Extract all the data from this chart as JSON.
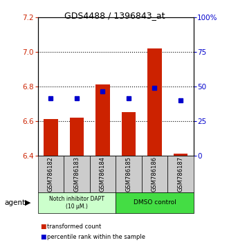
{
  "title": "GDS4488 / 1396843_at",
  "samples": [
    "GSM786182",
    "GSM786183",
    "GSM786184",
    "GSM786185",
    "GSM786186",
    "GSM786187"
  ],
  "bar_bottoms": [
    6.4,
    6.4,
    6.4,
    6.4,
    6.4,
    6.4
  ],
  "bar_tops": [
    6.61,
    6.62,
    6.81,
    6.65,
    7.02,
    6.41
  ],
  "percentile_values": [
    6.73,
    6.73,
    6.77,
    6.73,
    6.79,
    6.72
  ],
  "ylim_left": [
    6.4,
    7.2
  ],
  "ylim_right": [
    0,
    100
  ],
  "yticks_left": [
    6.4,
    6.6,
    6.8,
    7.0,
    7.2
  ],
  "yticks_right": [
    0,
    25,
    50,
    75,
    100
  ],
  "ytick_labels_right": [
    "0",
    "25",
    "50",
    "75",
    "100%"
  ],
  "bar_color": "#cc2200",
  "percentile_color": "#0000cc",
  "group1_label": "Notch inhibitor DAPT\n(10 μM.)",
  "group2_label": "DMSO control",
  "group1_color": "#ccffcc",
  "group2_color": "#44dd44",
  "agent_label": "agent",
  "legend_red": "transformed count",
  "legend_blue": "percentile rank within the sample",
  "bar_width": 0.55
}
